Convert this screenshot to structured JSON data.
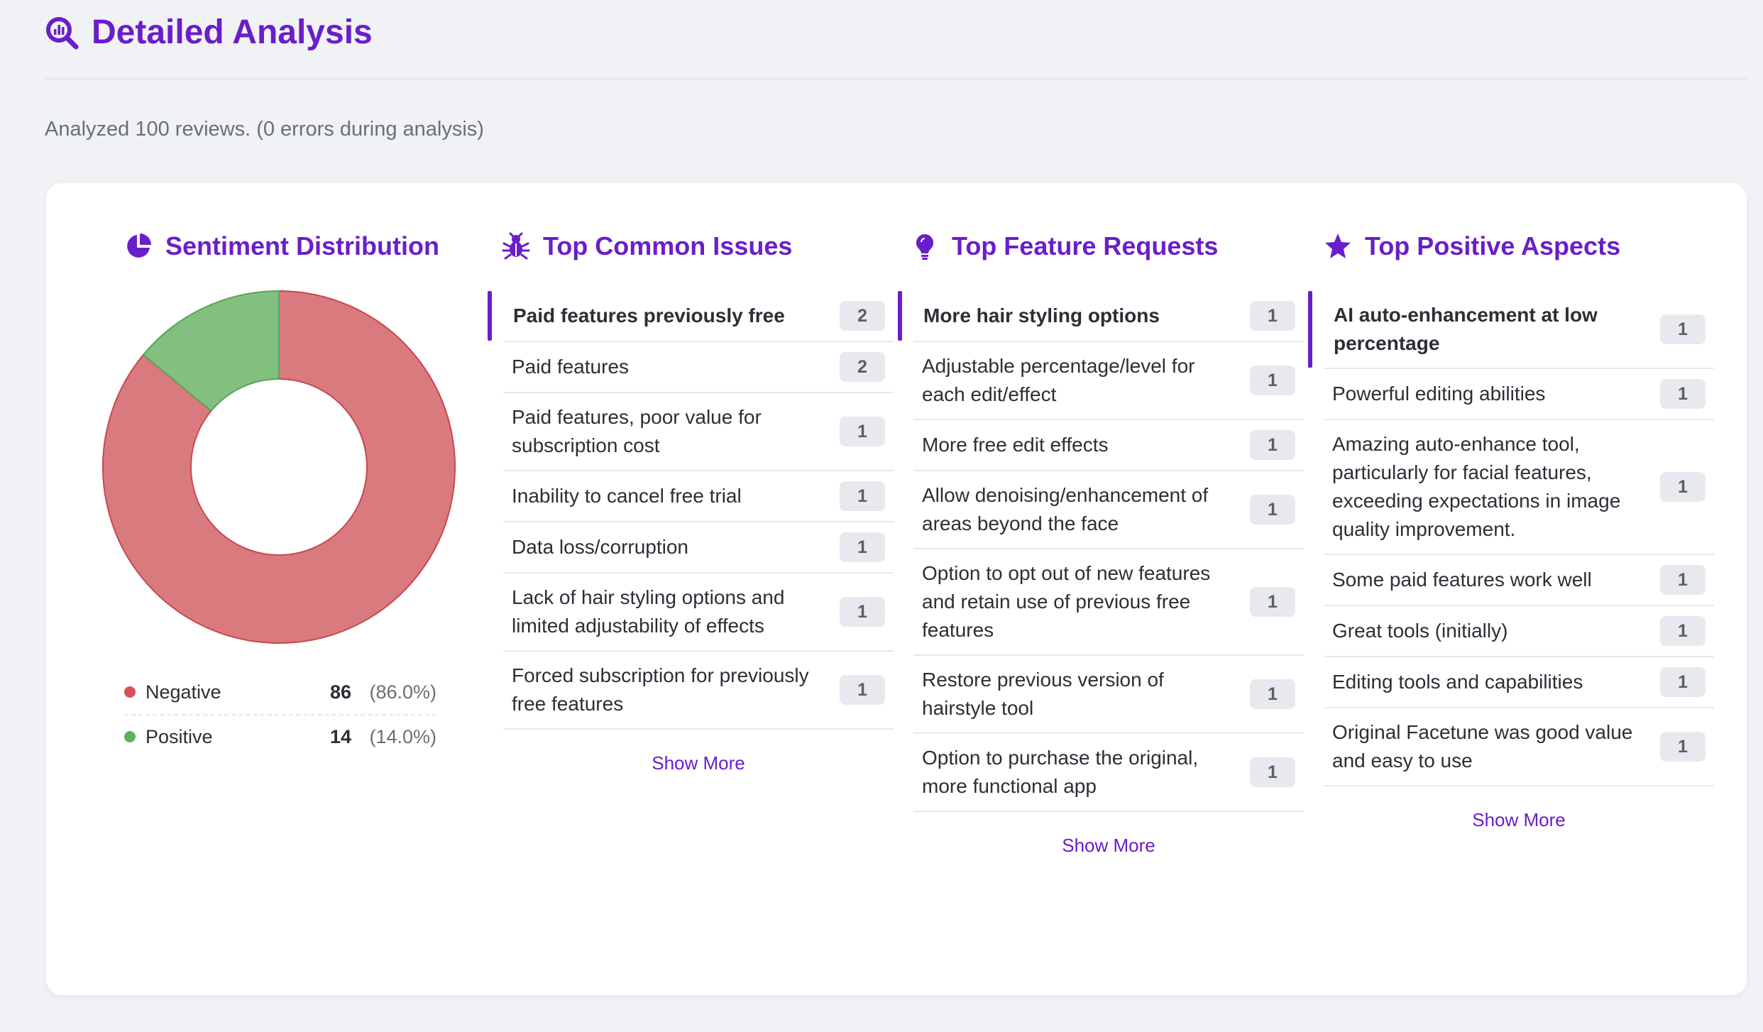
{
  "page": {
    "title": "Detailed Analysis",
    "summary": "Analyzed 100 reviews. (0 errors during analysis)"
  },
  "sentiment": {
    "title": "Sentiment Distribution",
    "icon": "pie-chart-icon",
    "legend": [
      {
        "label": "Negative",
        "count": "86",
        "pct": "(86.0%)",
        "color": "#d67676"
      },
      {
        "label": "Positive",
        "count": "14",
        "pct": "(14.0%)",
        "color": "#7fbf7b"
      }
    ]
  },
  "chart_data": {
    "type": "pie",
    "categories": [
      "Negative",
      "Positive"
    ],
    "values": [
      86,
      14
    ],
    "colors": [
      "#d97b7e",
      "#83c080"
    ],
    "stroke_colors": [
      "#c8474f",
      "#5aa25a"
    ],
    "donut": true
  },
  "issues": {
    "title": "Top Common Issues",
    "icon": "bug-icon",
    "show_more": "Show More",
    "items": [
      {
        "text": "Paid features previously free",
        "count": "2"
      },
      {
        "text": "Paid features",
        "count": "2"
      },
      {
        "text": "Paid features, poor value for subscription cost",
        "count": "1"
      },
      {
        "text": "Inability to cancel free trial",
        "count": "1"
      },
      {
        "text": "Data loss/corruption",
        "count": "1"
      },
      {
        "text": "Lack of hair styling options and limited adjustability of effects",
        "count": "1"
      },
      {
        "text": "Forced subscription for previously free features",
        "count": "1"
      }
    ]
  },
  "requests": {
    "title": "Top Feature Requests",
    "icon": "lightbulb-icon",
    "show_more": "Show More",
    "items": [
      {
        "text": "More hair styling options",
        "count": "1"
      },
      {
        "text": "Adjustable percentage/level for each edit/effect",
        "count": "1"
      },
      {
        "text": "More free edit effects",
        "count": "1"
      },
      {
        "text": "Allow denoising/enhancement of areas beyond the face",
        "count": "1"
      },
      {
        "text": "Option to opt out of new features and retain use of previous free features",
        "count": "1"
      },
      {
        "text": "Restore previous version of hairstyle tool",
        "count": "1"
      },
      {
        "text": "Option to purchase the original, more functional app",
        "count": "1"
      }
    ]
  },
  "positives": {
    "title": "Top Positive Aspects",
    "icon": "star-icon",
    "show_more": "Show More",
    "items": [
      {
        "text": "AI auto-enhancement at low percentage",
        "count": "1"
      },
      {
        "text": "Powerful editing abilities",
        "count": "1"
      },
      {
        "text": "Amazing auto-enhance tool, particularly for facial features, exceeding expectations in image quality improvement.",
        "count": "1"
      },
      {
        "text": "Some paid features work well",
        "count": "1"
      },
      {
        "text": "Great tools (initially)",
        "count": "1"
      },
      {
        "text": "Editing tools and capabilities",
        "count": "1"
      },
      {
        "text": "Original Facetune was good value and easy to use",
        "count": "1"
      }
    ]
  }
}
